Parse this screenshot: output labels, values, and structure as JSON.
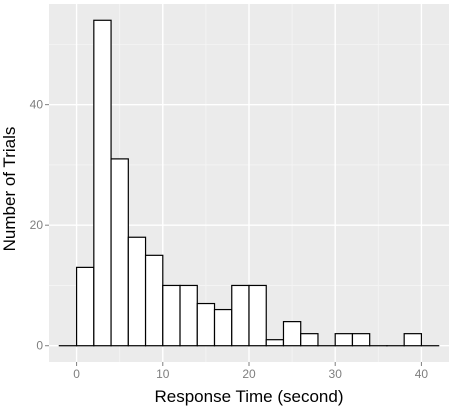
{
  "chart_data": {
    "type": "bar",
    "subtype": "histogram",
    "title": "",
    "xlabel": "Response Time (second)",
    "ylabel": "Number of Trials",
    "bin_width": 2.0,
    "bins": [
      {
        "x0": -2,
        "x1": 0,
        "count": 0
      },
      {
        "x0": 0,
        "x1": 2,
        "count": 13
      },
      {
        "x0": 2,
        "x1": 4,
        "count": 54
      },
      {
        "x0": 4,
        "x1": 6,
        "count": 31
      },
      {
        "x0": 6,
        "x1": 8,
        "count": 18
      },
      {
        "x0": 8,
        "x1": 10,
        "count": 15
      },
      {
        "x0": 10,
        "x1": 12,
        "count": 10
      },
      {
        "x0": 12,
        "x1": 14,
        "count": 10
      },
      {
        "x0": 14,
        "x1": 16,
        "count": 7
      },
      {
        "x0": 16,
        "x1": 18,
        "count": 6
      },
      {
        "x0": 18,
        "x1": 20,
        "count": 10
      },
      {
        "x0": 20,
        "x1": 22,
        "count": 10
      },
      {
        "x0": 22,
        "x1": 24,
        "count": 1
      },
      {
        "x0": 24,
        "x1": 26,
        "count": 4
      },
      {
        "x0": 26,
        "x1": 28,
        "count": 2
      },
      {
        "x0": 28,
        "x1": 30,
        "count": 0
      },
      {
        "x0": 30,
        "x1": 32,
        "count": 2
      },
      {
        "x0": 32,
        "x1": 34,
        "count": 2
      },
      {
        "x0": 34,
        "x1": 36,
        "count": 0
      },
      {
        "x0": 36,
        "x1": 38,
        "count": 0
      },
      {
        "x0": 38,
        "x1": 40,
        "count": 2
      },
      {
        "x0": 40,
        "x1": 42,
        "count": 0
      }
    ],
    "xlim": [
      -3.2,
      43.2
    ],
    "ylim": [
      -2.7,
      56.7
    ],
    "xticks": [
      0,
      10,
      20,
      30,
      40
    ],
    "yticks": [
      0,
      20,
      40
    ],
    "grid": true,
    "legend": "none",
    "colors": {
      "panel_background": "#ebebeb",
      "grid_major": "#ffffff",
      "grid_minor": "#f5f5f5",
      "bar_fill": "#ffffff",
      "bar_outline": "#000000",
      "tick_label": "#7f7f7f"
    }
  }
}
